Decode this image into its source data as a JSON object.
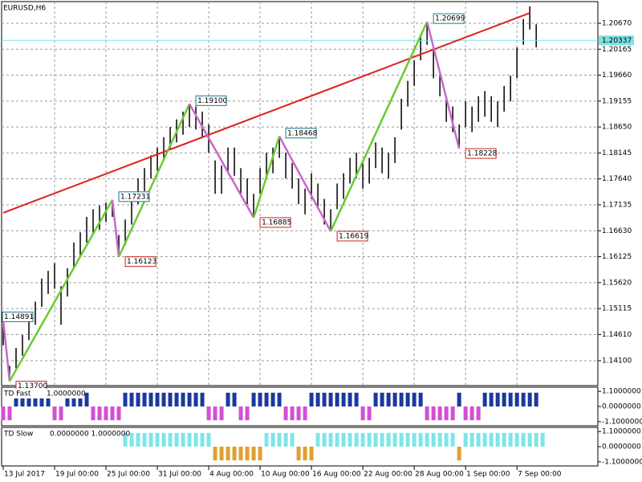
{
  "chart_data": [
    {
      "type": "ohlc",
      "title": "EURUSD,H6",
      "xlim": [
        -0.25,
        92.6
      ],
      "xticks": [
        {
          "value": 0,
          "label": "13 Jul 2017"
        },
        {
          "value": 8,
          "label": "19 Jul 00:00"
        },
        {
          "value": 16,
          "label": "25 Jul 00:00"
        },
        {
          "value": 24,
          "label": "31 Jul 00:00"
        },
        {
          "value": 32,
          "label": "4 Aug 00:00"
        },
        {
          "value": 40,
          "label": "10 Aug 00:00"
        },
        {
          "value": 48,
          "label": "16 Aug 00:00"
        },
        {
          "value": 56,
          "label": "22 Aug 00:00"
        },
        {
          "value": 64,
          "label": "28 Aug 00:00"
        },
        {
          "value": 72,
          "label": "1 Sep 00:00"
        },
        {
          "value": 80,
          "label": "7 Sep 00:00"
        }
      ],
      "ylim": [
        1.13615,
        1.21092
      ],
      "yticks": [
        {
          "value": 1.2067,
          "label": "1.20670"
        },
        1.20165,
        {
          "value": 1.1966,
          "label": "1.19660"
        },
        1.19155,
        {
          "value": 1.1865,
          "label": "1.18650"
        },
        1.18145,
        {
          "value": 1.1764,
          "label": "1.17640"
        },
        1.17135,
        {
          "value": 1.1663,
          "label": "1.16630"
        },
        1.16125,
        {
          "value": 1.1562,
          "label": "1.15620"
        },
        1.15115,
        {
          "value": 1.1461,
          "label": "1.14610"
        },
        {
          "value": 1.141,
          "label": "1.14100"
        }
      ],
      "grid": true,
      "color": "#000000",
      "high": [
        1.1489,
        1.14,
        1.1435,
        1.146,
        1.149,
        1.1525,
        1.157,
        1.1585,
        1.16,
        1.1555,
        1.159,
        1.164,
        1.166,
        1.169,
        1.1705,
        1.1712,
        1.1718,
        1.1723,
        1.1655,
        1.1685,
        1.172,
        1.1765,
        1.1785,
        1.181,
        1.1825,
        1.1845,
        1.1865,
        1.188,
        1.1895,
        1.191,
        1.1905,
        1.1895,
        1.187,
        1.18,
        1.179,
        1.1825,
        1.1825,
        1.1785,
        1.1765,
        1.1735,
        1.1785,
        1.1815,
        1.1825,
        1.1847,
        1.1815,
        1.1795,
        1.1765,
        1.1745,
        1.1775,
        1.1755,
        1.1725,
        1.1705,
        1.1755,
        1.1775,
        1.1805,
        1.1815,
        1.1795,
        1.1805,
        1.1835,
        1.1825,
        1.1815,
        1.1845,
        1.192,
        1.1955,
        1.1995,
        1.2045,
        1.207,
        1.202,
        1.1975,
        1.1925,
        1.1905,
        1.187,
        1.1915,
        1.1905,
        1.1925,
        1.1935,
        1.1925,
        1.1915,
        1.1945,
        1.1965,
        1.202,
        1.2075,
        1.21,
        1.2065
      ],
      "low": [
        1.144,
        1.137,
        1.1395,
        1.142,
        1.145,
        1.148,
        1.1515,
        1.154,
        1.155,
        1.148,
        1.1535,
        1.159,
        1.1615,
        1.164,
        1.1655,
        1.1665,
        1.168,
        1.169,
        1.1612,
        1.1635,
        1.1675,
        1.1715,
        1.174,
        1.1765,
        1.178,
        1.18,
        1.182,
        1.1835,
        1.185,
        1.1865,
        1.186,
        1.1845,
        1.1815,
        1.1735,
        1.1735,
        1.1775,
        1.177,
        1.1735,
        1.1715,
        1.1689,
        1.1735,
        1.1765,
        1.1775,
        1.1805,
        1.1765,
        1.1745,
        1.1715,
        1.1695,
        1.1725,
        1.1705,
        1.1675,
        1.1662,
        1.1705,
        1.1725,
        1.1755,
        1.1765,
        1.1745,
        1.1755,
        1.1785,
        1.1775,
        1.1765,
        1.1795,
        1.186,
        1.1905,
        1.1945,
        1.1995,
        1.2025,
        1.196,
        1.1925,
        1.1875,
        1.1855,
        1.1823,
        1.1865,
        1.1855,
        1.1875,
        1.1885,
        1.1875,
        1.1865,
        1.1895,
        1.1915,
        1.196,
        1.2025,
        1.2055,
        1.202
      ],
      "current_price": 1.20337,
      "current_label": "1.20337",
      "current_color": "#7fe0e0",
      "zigzag": {
        "x": [
          0,
          1,
          17,
          18,
          29,
          39,
          43,
          51,
          66,
          71
        ],
        "values": [
          1.14891,
          1.137,
          1.17231,
          1.16123,
          1.191,
          1.16885,
          1.18468,
          1.16619,
          1.20699,
          1.18228
        ],
        "value_labels": [
          "1.14891",
          "1.13700",
          "1.17231",
          "1.16123",
          "1.19100",
          "1.16885",
          "1.18468",
          "1.16619",
          "1.20699",
          "1.18228"
        ],
        "up_color": "#66cc33",
        "down_color": "#cc66cc"
      },
      "trendline": {
        "x": [
          0,
          82
        ],
        "values": [
          1.1698,
          1.2087
        ],
        "color": "#dd2222"
      }
    },
    {
      "type": "bar",
      "title": "TD Fast",
      "readout": "1.0000000",
      "ylim": [
        -1.4,
        1.4
      ],
      "yticks": [
        {
          "value": 1.1,
          "label": "1.1000000"
        },
        {
          "value": 0,
          "label": "0.0000000"
        },
        {
          "value": -1.1,
          "label": "-1.1000000"
        }
      ],
      "up_color": "#1a3a9c",
      "down_color": "#d44fd4",
      "values": [
        -1,
        -1,
        1,
        1,
        1,
        1,
        1,
        1,
        -1,
        -1,
        1,
        1,
        1,
        1,
        -1,
        -1,
        -1,
        -1,
        -1,
        1,
        1,
        1,
        1,
        1,
        1,
        1,
        1,
        1,
        1,
        1,
        1,
        1,
        -1,
        -1,
        -1,
        1,
        1,
        -1,
        -1,
        1,
        1,
        1,
        1,
        1,
        -1,
        -1,
        -1,
        -1,
        1,
        1,
        1,
        1,
        1,
        1,
        1,
        1,
        -1,
        -1,
        1,
        1,
        1,
        1,
        1,
        1,
        1,
        1,
        -1,
        -1,
        -1,
        -1,
        -1,
        1,
        -1,
        -1,
        -1,
        1,
        1,
        1,
        1,
        1,
        1,
        1,
        1,
        1
      ]
    },
    {
      "type": "bar",
      "title": "TD Slow",
      "readout": "0.0000000 1.0000000",
      "ylim": [
        -1.4,
        1.4
      ],
      "yticks": [
        {
          "value": 1.1,
          "label": "1.1000000"
        },
        {
          "value": 0,
          "label": "0.0000000"
        },
        {
          "value": -1.1,
          "label": "-1.1000000"
        }
      ],
      "up_color": "#7fe6e6",
      "down_color": "#e0a030",
      "values": [
        0,
        0,
        0,
        0,
        0,
        0,
        0,
        0,
        0,
        0,
        0,
        0,
        0,
        0,
        0,
        0,
        0,
        0,
        0,
        1,
        1,
        1,
        1,
        1,
        1,
        1,
        1,
        1,
        1,
        1,
        1,
        1,
        1,
        -1,
        -1,
        -1,
        -1,
        -1,
        -1,
        -1,
        -1,
        1,
        1,
        1,
        1,
        1,
        -1,
        -1,
        -1,
        1,
        1,
        1,
        1,
        1,
        1,
        1,
        1,
        1,
        1,
        1,
        1,
        1,
        1,
        1,
        1,
        1,
        1,
        1,
        1,
        1,
        1,
        -1,
        1,
        1,
        1,
        1,
        1,
        1,
        1,
        1,
        1,
        1,
        1,
        1,
        1
      ]
    }
  ]
}
